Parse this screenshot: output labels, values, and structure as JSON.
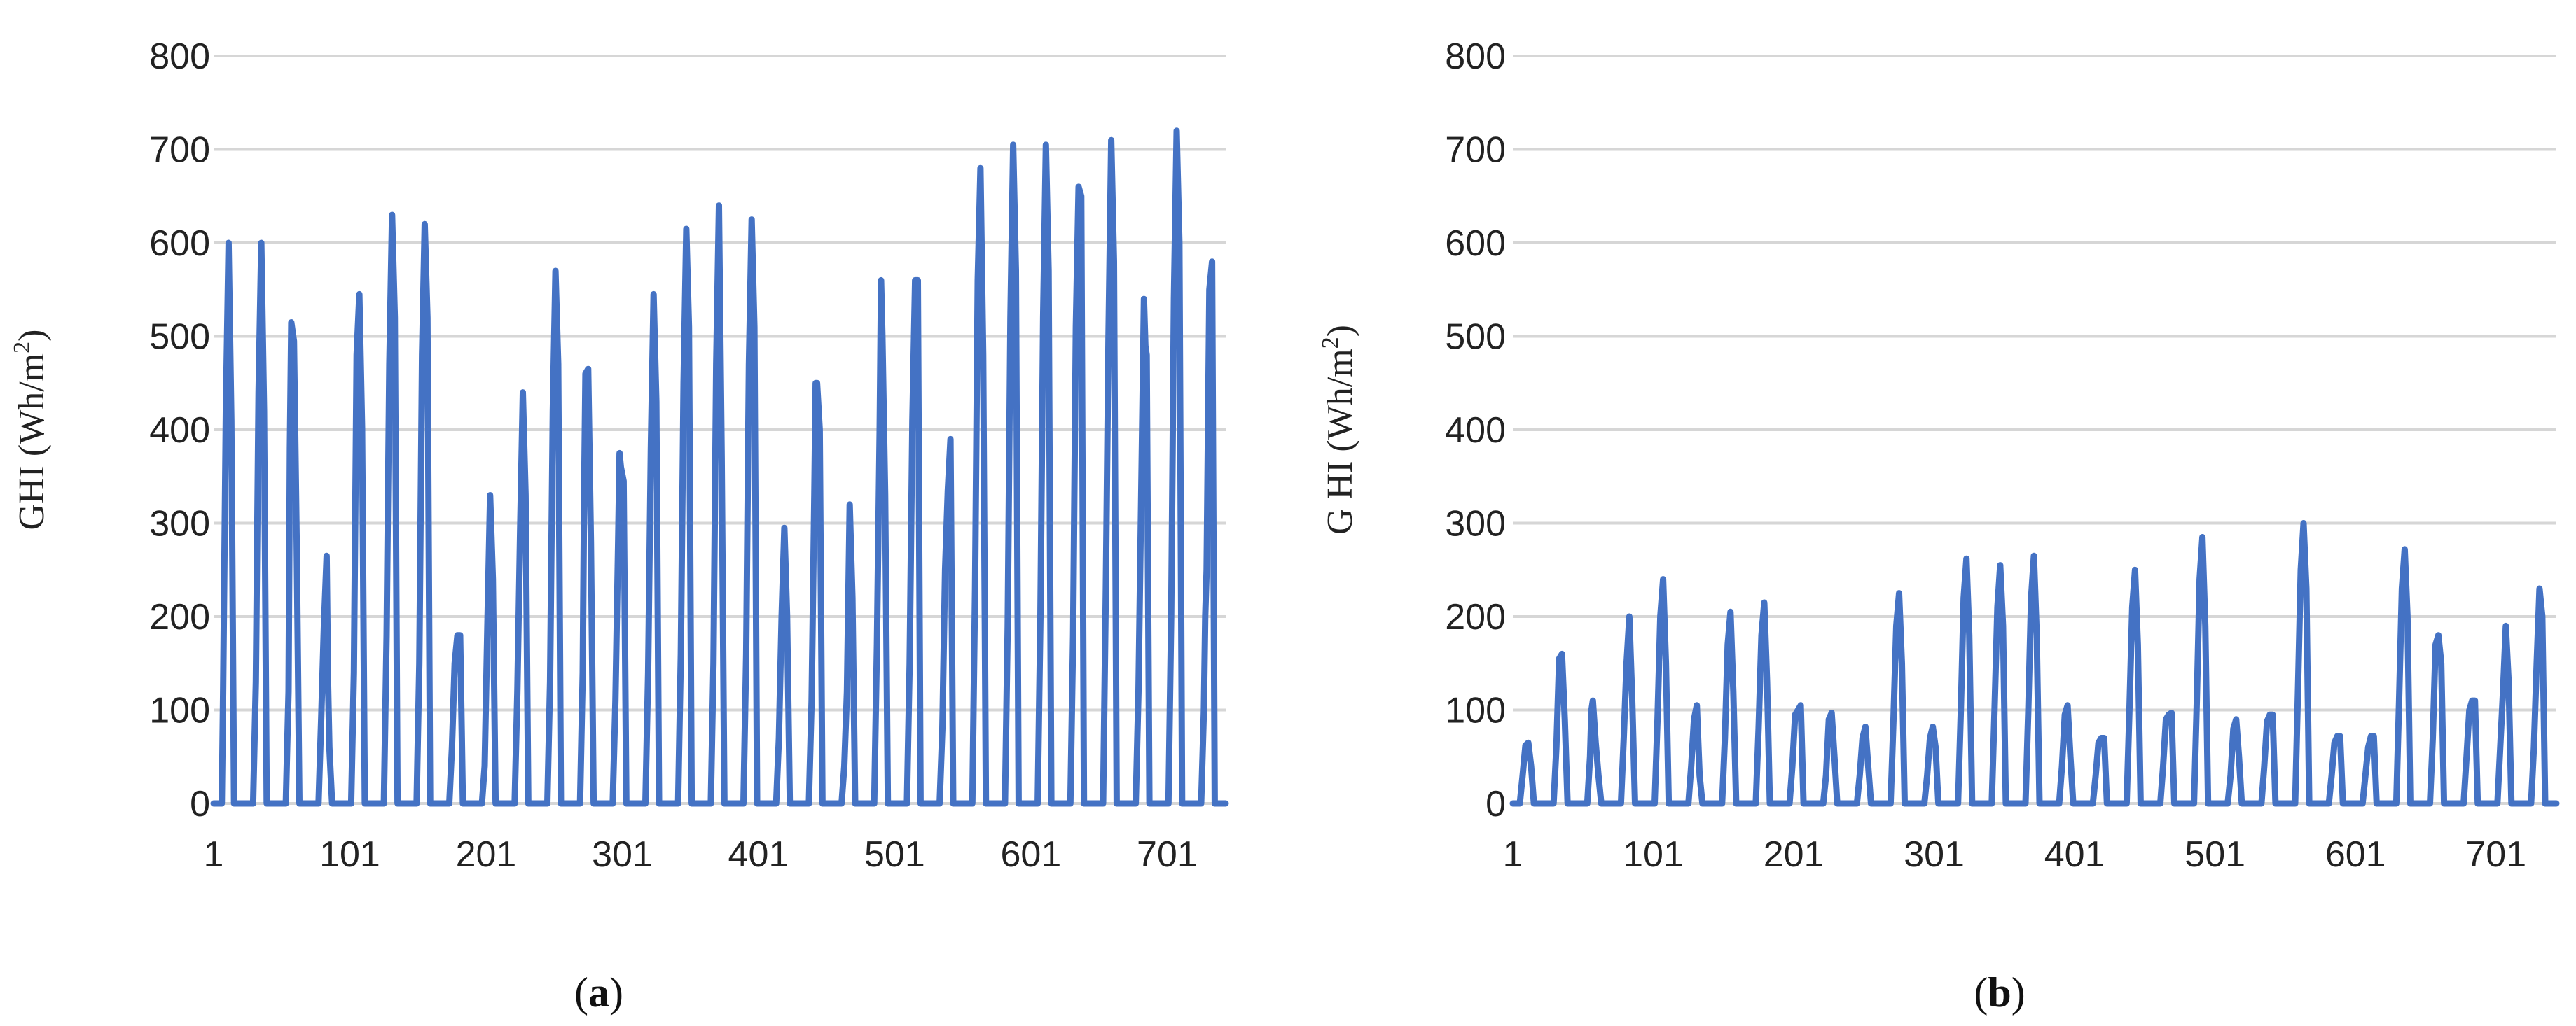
{
  "chart_data": [
    {
      "type": "line",
      "panel_label": "a",
      "ylabel": "GHI (Wh/m",
      "ylabel_sup": "2",
      "ylabel_close": ")",
      "xlim": [
        1,
        744
      ],
      "ylim": [
        0,
        800
      ],
      "grid": true,
      "legend": "none",
      "x_ticks": [
        "1",
        "101",
        "201",
        "301",
        "401",
        "501",
        "601",
        "701"
      ],
      "y_ticks": [
        "0",
        "100",
        "200",
        "300",
        "400",
        "500",
        "600",
        "700",
        "800"
      ],
      "series": [
        {
          "color": "#4472C4",
          "x": [
            1,
            7,
            8,
            10,
            12,
            14,
            16,
            30,
            32,
            34,
            36,
            38,
            40,
            54,
            56,
            57,
            58,
            60,
            62,
            64,
            78,
            80,
            82,
            84,
            85,
            86,
            88,
            102,
            104,
            106,
            108,
            110,
            112,
            126,
            128,
            130,
            132,
            134,
            136,
            150,
            152,
            154,
            156,
            158,
            160,
            174,
            176,
            178,
            180,
            182,
            184,
            198,
            200,
            202,
            204,
            206,
            208,
            222,
            224,
            226,
            228,
            230,
            232,
            246,
            248,
            250,
            252,
            254,
            256,
            270,
            272,
            273,
            274,
            276,
            278,
            280,
            294,
            296,
            298,
            299,
            300,
            302,
            304,
            318,
            320,
            322,
            324,
            326,
            328,
            342,
            344,
            346,
            348,
            350,
            352,
            366,
            368,
            370,
            372,
            374,
            376,
            390,
            392,
            394,
            396,
            398,
            400,
            414,
            416,
            418,
            420,
            422,
            424,
            438,
            440,
            442,
            443,
            444,
            446,
            448,
            462,
            464,
            466,
            468,
            470,
            472,
            486,
            488,
            490,
            491,
            492,
            494,
            496,
            510,
            512,
            514,
            516,
            518,
            520,
            534,
            536,
            538,
            540,
            542,
            544,
            558,
            560,
            562,
            564,
            566,
            568,
            582,
            584,
            586,
            588,
            590,
            592,
            606,
            608,
            610,
            612,
            614,
            616,
            630,
            632,
            634,
            636,
            638,
            640,
            654,
            656,
            658,
            660,
            662,
            664,
            678,
            680,
            682,
            684,
            685,
            686,
            688,
            702,
            704,
            706,
            708,
            710,
            712,
            726,
            728,
            729,
            730,
            732,
            734,
            736,
            744
          ],
          "y": [
            0,
            0,
            120,
            420,
            600,
            410,
            0,
            0,
            130,
            440,
            600,
            420,
            0,
            0,
            120,
            380,
            515,
            495,
            280,
            0,
            0,
            90,
            190,
            265,
            130,
            60,
            0,
            0,
            140,
            480,
            545,
            400,
            0,
            0,
            180,
            470,
            630,
            520,
            0,
            0,
            150,
            480,
            620,
            520,
            0,
            0,
            60,
            150,
            180,
            180,
            0,
            0,
            40,
            190,
            330,
            240,
            0,
            0,
            120,
            290,
            440,
            330,
            0,
            0,
            130,
            420,
            570,
            470,
            0,
            0,
            140,
            330,
            460,
            465,
            280,
            0,
            0,
            110,
            280,
            375,
            360,
            345,
            0,
            0,
            140,
            380,
            545,
            430,
            0,
            0,
            160,
            450,
            615,
            510,
            0,
            0,
            150,
            470,
            640,
            370,
            0,
            0,
            160,
            470,
            625,
            510,
            0,
            0,
            70,
            200,
            295,
            200,
            0,
            0,
            110,
            330,
            450,
            450,
            400,
            0,
            0,
            40,
            120,
            320,
            220,
            0,
            0,
            170,
            400,
            560,
            500,
            330,
            0,
            0,
            150,
            410,
            560,
            560,
            0,
            0,
            80,
            250,
            335,
            390,
            0,
            0,
            230,
            560,
            680,
            480,
            0,
            0,
            190,
            520,
            705,
            570,
            0,
            0,
            200,
            520,
            705,
            570,
            0,
            0,
            180,
            510,
            660,
            650,
            0,
            0,
            230,
            500,
            710,
            580,
            0,
            0,
            120,
            330,
            540,
            490,
            480,
            0,
            0,
            200,
            540,
            720,
            600,
            0,
            0,
            100,
            200,
            250,
            550,
            580,
            0,
            0
          ]
        }
      ]
    },
    {
      "type": "line",
      "panel_label": "b",
      "ylabel": "G HI (Wh/m",
      "ylabel_sup": "2",
      "ylabel_close": ")",
      "xlim": [
        1,
        744
      ],
      "ylim": [
        0,
        800
      ],
      "grid": true,
      "legend": "none",
      "x_ticks": [
        "1",
        "101",
        "201",
        "301",
        "401",
        "501",
        "601",
        "701"
      ],
      "y_ticks": [
        "0",
        "100",
        "200",
        "300",
        "400",
        "500",
        "600",
        "700",
        "800"
      ],
      "series": [
        {
          "color": "#4472C4",
          "x": [
            1,
            6,
            8,
            10,
            12,
            14,
            16,
            30,
            32,
            34,
            36,
            38,
            40,
            54,
            56,
            57,
            58,
            60,
            62,
            64,
            78,
            80,
            82,
            84,
            86,
            88,
            102,
            104,
            106,
            108,
            110,
            112,
            126,
            128,
            130,
            132,
            134,
            136,
            150,
            152,
            154,
            156,
            158,
            160,
            174,
            176,
            178,
            180,
            182,
            184,
            198,
            200,
            202,
            204,
            206,
            208,
            222,
            224,
            226,
            228,
            230,
            232,
            246,
            248,
            250,
            252,
            254,
            256,
            270,
            272,
            274,
            276,
            278,
            280,
            294,
            296,
            298,
            300,
            302,
            304,
            318,
            320,
            322,
            324,
            326,
            328,
            342,
            344,
            346,
            348,
            350,
            352,
            366,
            368,
            370,
            372,
            374,
            376,
            390,
            392,
            394,
            396,
            398,
            400,
            414,
            416,
            418,
            420,
            422,
            424,
            438,
            440,
            442,
            444,
            446,
            448,
            462,
            464,
            466,
            468,
            470,
            472,
            486,
            488,
            490,
            492,
            494,
            496,
            510,
            512,
            514,
            516,
            518,
            520,
            534,
            536,
            538,
            540,
            542,
            544,
            558,
            560,
            562,
            564,
            566,
            568,
            582,
            584,
            586,
            588,
            590,
            592,
            606,
            608,
            610,
            612,
            614,
            616,
            630,
            632,
            634,
            636,
            638,
            640,
            654,
            656,
            658,
            660,
            662,
            664,
            678,
            680,
            682,
            684,
            686,
            688,
            702,
            704,
            706,
            708,
            710,
            712,
            726,
            728,
            730,
            732,
            734,
            736,
            744
          ],
          "y": [
            0,
            0,
            30,
            62,
            65,
            40,
            0,
            0,
            60,
            155,
            160,
            90,
            0,
            0,
            50,
            100,
            110,
            65,
            30,
            0,
            0,
            70,
            150,
            200,
            110,
            0,
            0,
            90,
            200,
            240,
            150,
            0,
            0,
            40,
            90,
            105,
            30,
            0,
            0,
            70,
            170,
            205,
            120,
            0,
            0,
            80,
            180,
            215,
            130,
            0,
            0,
            40,
            95,
            100,
            105,
            0,
            0,
            30,
            90,
            97,
            50,
            0,
            0,
            30,
            70,
            82,
            40,
            0,
            0,
            90,
            190,
            225,
            150,
            0,
            0,
            30,
            70,
            82,
            60,
            0,
            0,
            100,
            220,
            262,
            180,
            0,
            0,
            100,
            210,
            255,
            190,
            0,
            0,
            100,
            220,
            265,
            180,
            0,
            0,
            40,
            95,
            105,
            50,
            0,
            0,
            30,
            65,
            70,
            70,
            0,
            0,
            100,
            210,
            250,
            170,
            0,
            0,
            40,
            90,
            95,
            97,
            0,
            0,
            110,
            240,
            285,
            190,
            0,
            0,
            30,
            80,
            90,
            50,
            0,
            0,
            40,
            88,
            95,
            95,
            0,
            0,
            120,
            250,
            300,
            230,
            0,
            0,
            30,
            65,
            72,
            72,
            0,
            0,
            30,
            60,
            72,
            72,
            0,
            0,
            110,
            230,
            272,
            200,
            0,
            0,
            70,
            170,
            180,
            150,
            0,
            0,
            50,
            100,
            110,
            110,
            0,
            0,
            60,
            120,
            190,
            130,
            0,
            0,
            60,
            150,
            230,
            200,
            0,
            0
          ]
        }
      ]
    }
  ]
}
